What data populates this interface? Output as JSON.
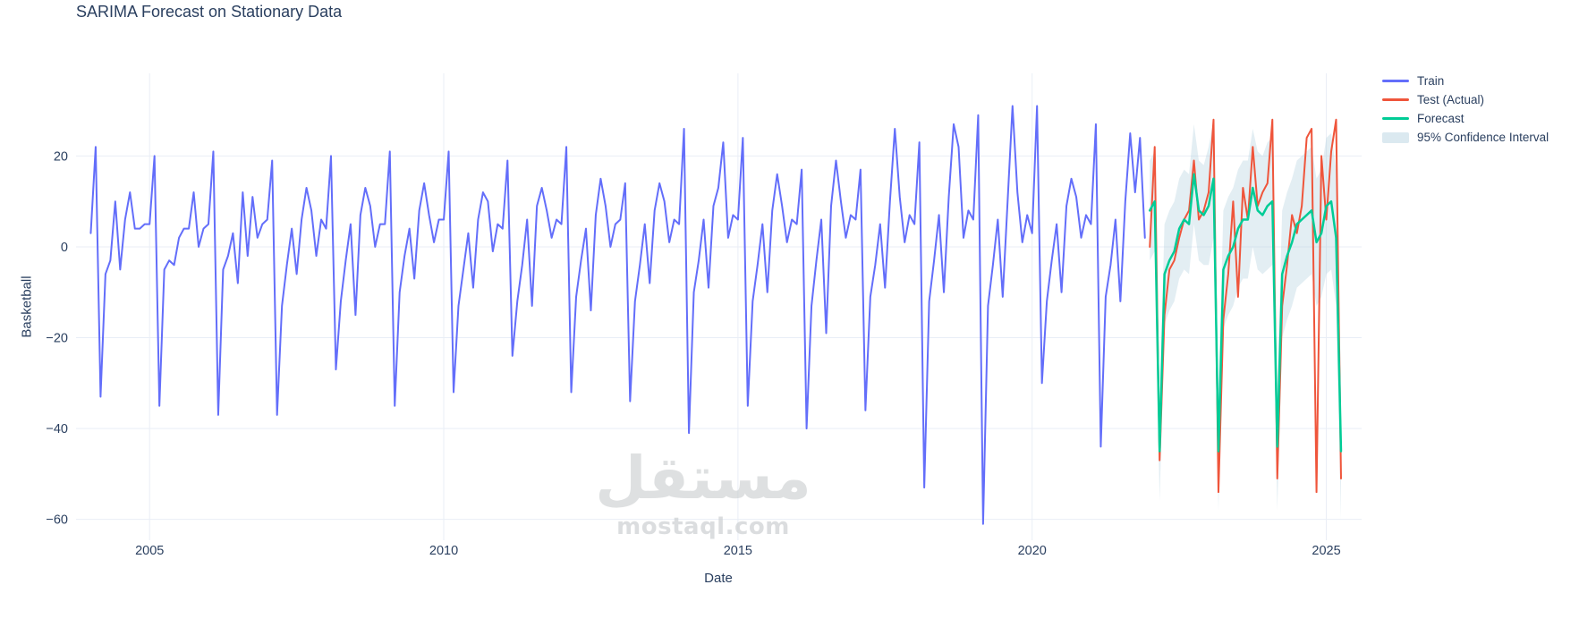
{
  "chart": {
    "title": "SARIMA Forecast on Stationary Data",
    "xlabel": "Date",
    "ylabel": "Basketball"
  },
  "watermark": {
    "arabic": "مستقل",
    "domain": "mostaql.com"
  },
  "legend": {
    "items": [
      {
        "label": "Train",
        "swatch": "#636efa",
        "kind": "line"
      },
      {
        "label": "Test (Actual)",
        "swatch": "#ef553b",
        "kind": "line"
      },
      {
        "label": "Forecast",
        "swatch": "#00cc96",
        "kind": "line"
      },
      {
        "label": "95% Confidence Interval",
        "swatch": "#dbe9f0",
        "kind": "band"
      }
    ]
  },
  "chart_data": {
    "type": "line",
    "title": "SARIMA Forecast on Stationary Data",
    "xlabel": "Date",
    "ylabel": "Basketball",
    "xlim": [
      2003.75,
      2025.6
    ],
    "ylim": [
      -64.6,
      38.2
    ],
    "grid": true,
    "legend_position": "right",
    "colors": {
      "grid": "#e9eef6",
      "text": "#2a3f5f",
      "background": "#ffffff"
    },
    "xticks": [
      {
        "v": 2005,
        "label": "2005"
      },
      {
        "v": 2010,
        "label": "2010"
      },
      {
        "v": 2015,
        "label": "2015"
      },
      {
        "v": 2020,
        "label": "2020"
      },
      {
        "v": 2025,
        "label": "2025"
      }
    ],
    "yticks": [
      {
        "v": 20,
        "label": "20"
      },
      {
        "v": 0,
        "label": "0"
      },
      {
        "v": -20,
        "label": "−20"
      },
      {
        "v": -40,
        "label": "−40"
      },
      {
        "v": -60,
        "label": "−60"
      }
    ],
    "series": [
      {
        "name": "Train",
        "color": "#636efa",
        "width": 2,
        "x0": 2004.0,
        "dx_years": 0.0833333,
        "values": [
          3,
          22,
          -33,
          -6,
          -3,
          10,
          -5,
          6,
          12,
          4,
          4,
          5,
          5,
          20,
          -35,
          -5,
          -3,
          -4,
          2,
          4,
          4,
          12,
          0,
          4,
          5,
          21,
          -37,
          -5,
          -2,
          3,
          -8,
          12,
          -2,
          11,
          2,
          5,
          6,
          19,
          -37,
          -13,
          -4,
          4,
          -6,
          6,
          13,
          8,
          -2,
          6,
          4,
          20,
          -27,
          -12,
          -3,
          5,
          -15,
          7,
          13,
          9,
          0,
          5,
          5,
          21,
          -35,
          -10,
          -2,
          4,
          -7,
          8,
          14,
          7,
          1,
          6,
          6,
          21,
          -32,
          -13,
          -5,
          3,
          -9,
          6,
          12,
          10,
          -1,
          5,
          4,
          19,
          -24,
          -12,
          -4,
          6,
          -13,
          9,
          13,
          8,
          2,
          6,
          5,
          22,
          -32,
          -11,
          -3,
          4,
          -14,
          7,
          15,
          9,
          0,
          5,
          6,
          14,
          -34,
          -12,
          -4,
          5,
          -8,
          8,
          14,
          10,
          1,
          6,
          5,
          26,
          -41,
          -10,
          -3,
          6,
          -9,
          9,
          13,
          23,
          2,
          7,
          6,
          24,
          -35,
          -12,
          -4,
          5,
          -10,
          8,
          16,
          9,
          1,
          6,
          5,
          17,
          -40,
          -13,
          -3,
          6,
          -19,
          9,
          19,
          10,
          2,
          7,
          6,
          17,
          -36,
          -11,
          -4,
          5,
          -9,
          10,
          26,
          11,
          1,
          7,
          5,
          23,
          -53,
          -12,
          -3,
          7,
          -10,
          11,
          27,
          22,
          2,
          8,
          6,
          29,
          -61,
          -13,
          -4,
          6,
          -11,
          10,
          31,
          12,
          1,
          7,
          3,
          31,
          -30,
          -12,
          -3,
          5,
          -10,
          9,
          15,
          11,
          2,
          7,
          5,
          27,
          -44,
          -11,
          -4,
          6,
          -12,
          10,
          25,
          12,
          24,
          2
        ]
      },
      {
        "name": "Test (Actual)",
        "color": "#ef553b",
        "width": 2,
        "x0": 2022.0,
        "dx_years": 0.0833333,
        "values": [
          0,
          22,
          -47,
          -15,
          -5,
          -3,
          2,
          6,
          8,
          19,
          6,
          8,
          12,
          28,
          -54,
          -16,
          -6,
          10,
          -11,
          13,
          6,
          22,
          9,
          12,
          14,
          28,
          -51,
          -13,
          -4,
          7,
          3,
          9,
          24,
          26,
          -54,
          20,
          6,
          21,
          28,
          -51
        ]
      },
      {
        "name": "Forecast",
        "color": "#00cc96",
        "width": 2.5,
        "x0": 2022.0,
        "dx_years": 0.0833333,
        "values": [
          8,
          10,
          -45,
          -6,
          -3,
          -1,
          4,
          6,
          5,
          16,
          8,
          7,
          9,
          15,
          -45,
          -5,
          -2,
          0,
          4,
          6,
          6,
          13,
          8,
          7,
          9,
          10,
          -44,
          -6,
          -2,
          1,
          5,
          6,
          7,
          8,
          1,
          3,
          9,
          10,
          2,
          -45
        ]
      },
      {
        "name": "95% Confidence Interval",
        "band": true,
        "color": "rgba(168,203,218,0.32)",
        "x0": 2022.0,
        "dx_years": 0.0833333,
        "upper": [
          19,
          21,
          -34,
          5,
          8,
          10,
          15,
          17,
          16,
          27,
          19,
          18,
          22,
          28,
          -32,
          8,
          11,
          13,
          17,
          19,
          19,
          26,
          21,
          20,
          23,
          24,
          -30,
          8,
          12,
          15,
          19,
          20,
          21,
          22,
          15,
          17,
          24,
          25,
          17,
          -30
        ],
        "lower": [
          -3,
          -1,
          -56,
          -17,
          -14,
          -12,
          -7,
          -5,
          -6,
          5,
          -3,
          -4,
          -4,
          2,
          -58,
          -18,
          -15,
          -13,
          -9,
          -7,
          -7,
          0,
          -5,
          -6,
          -5,
          -4,
          -58,
          -20,
          -16,
          -13,
          -9,
          -8,
          -7,
          -6,
          -13,
          -11,
          -6,
          -5,
          -13,
          -60
        ]
      }
    ]
  }
}
